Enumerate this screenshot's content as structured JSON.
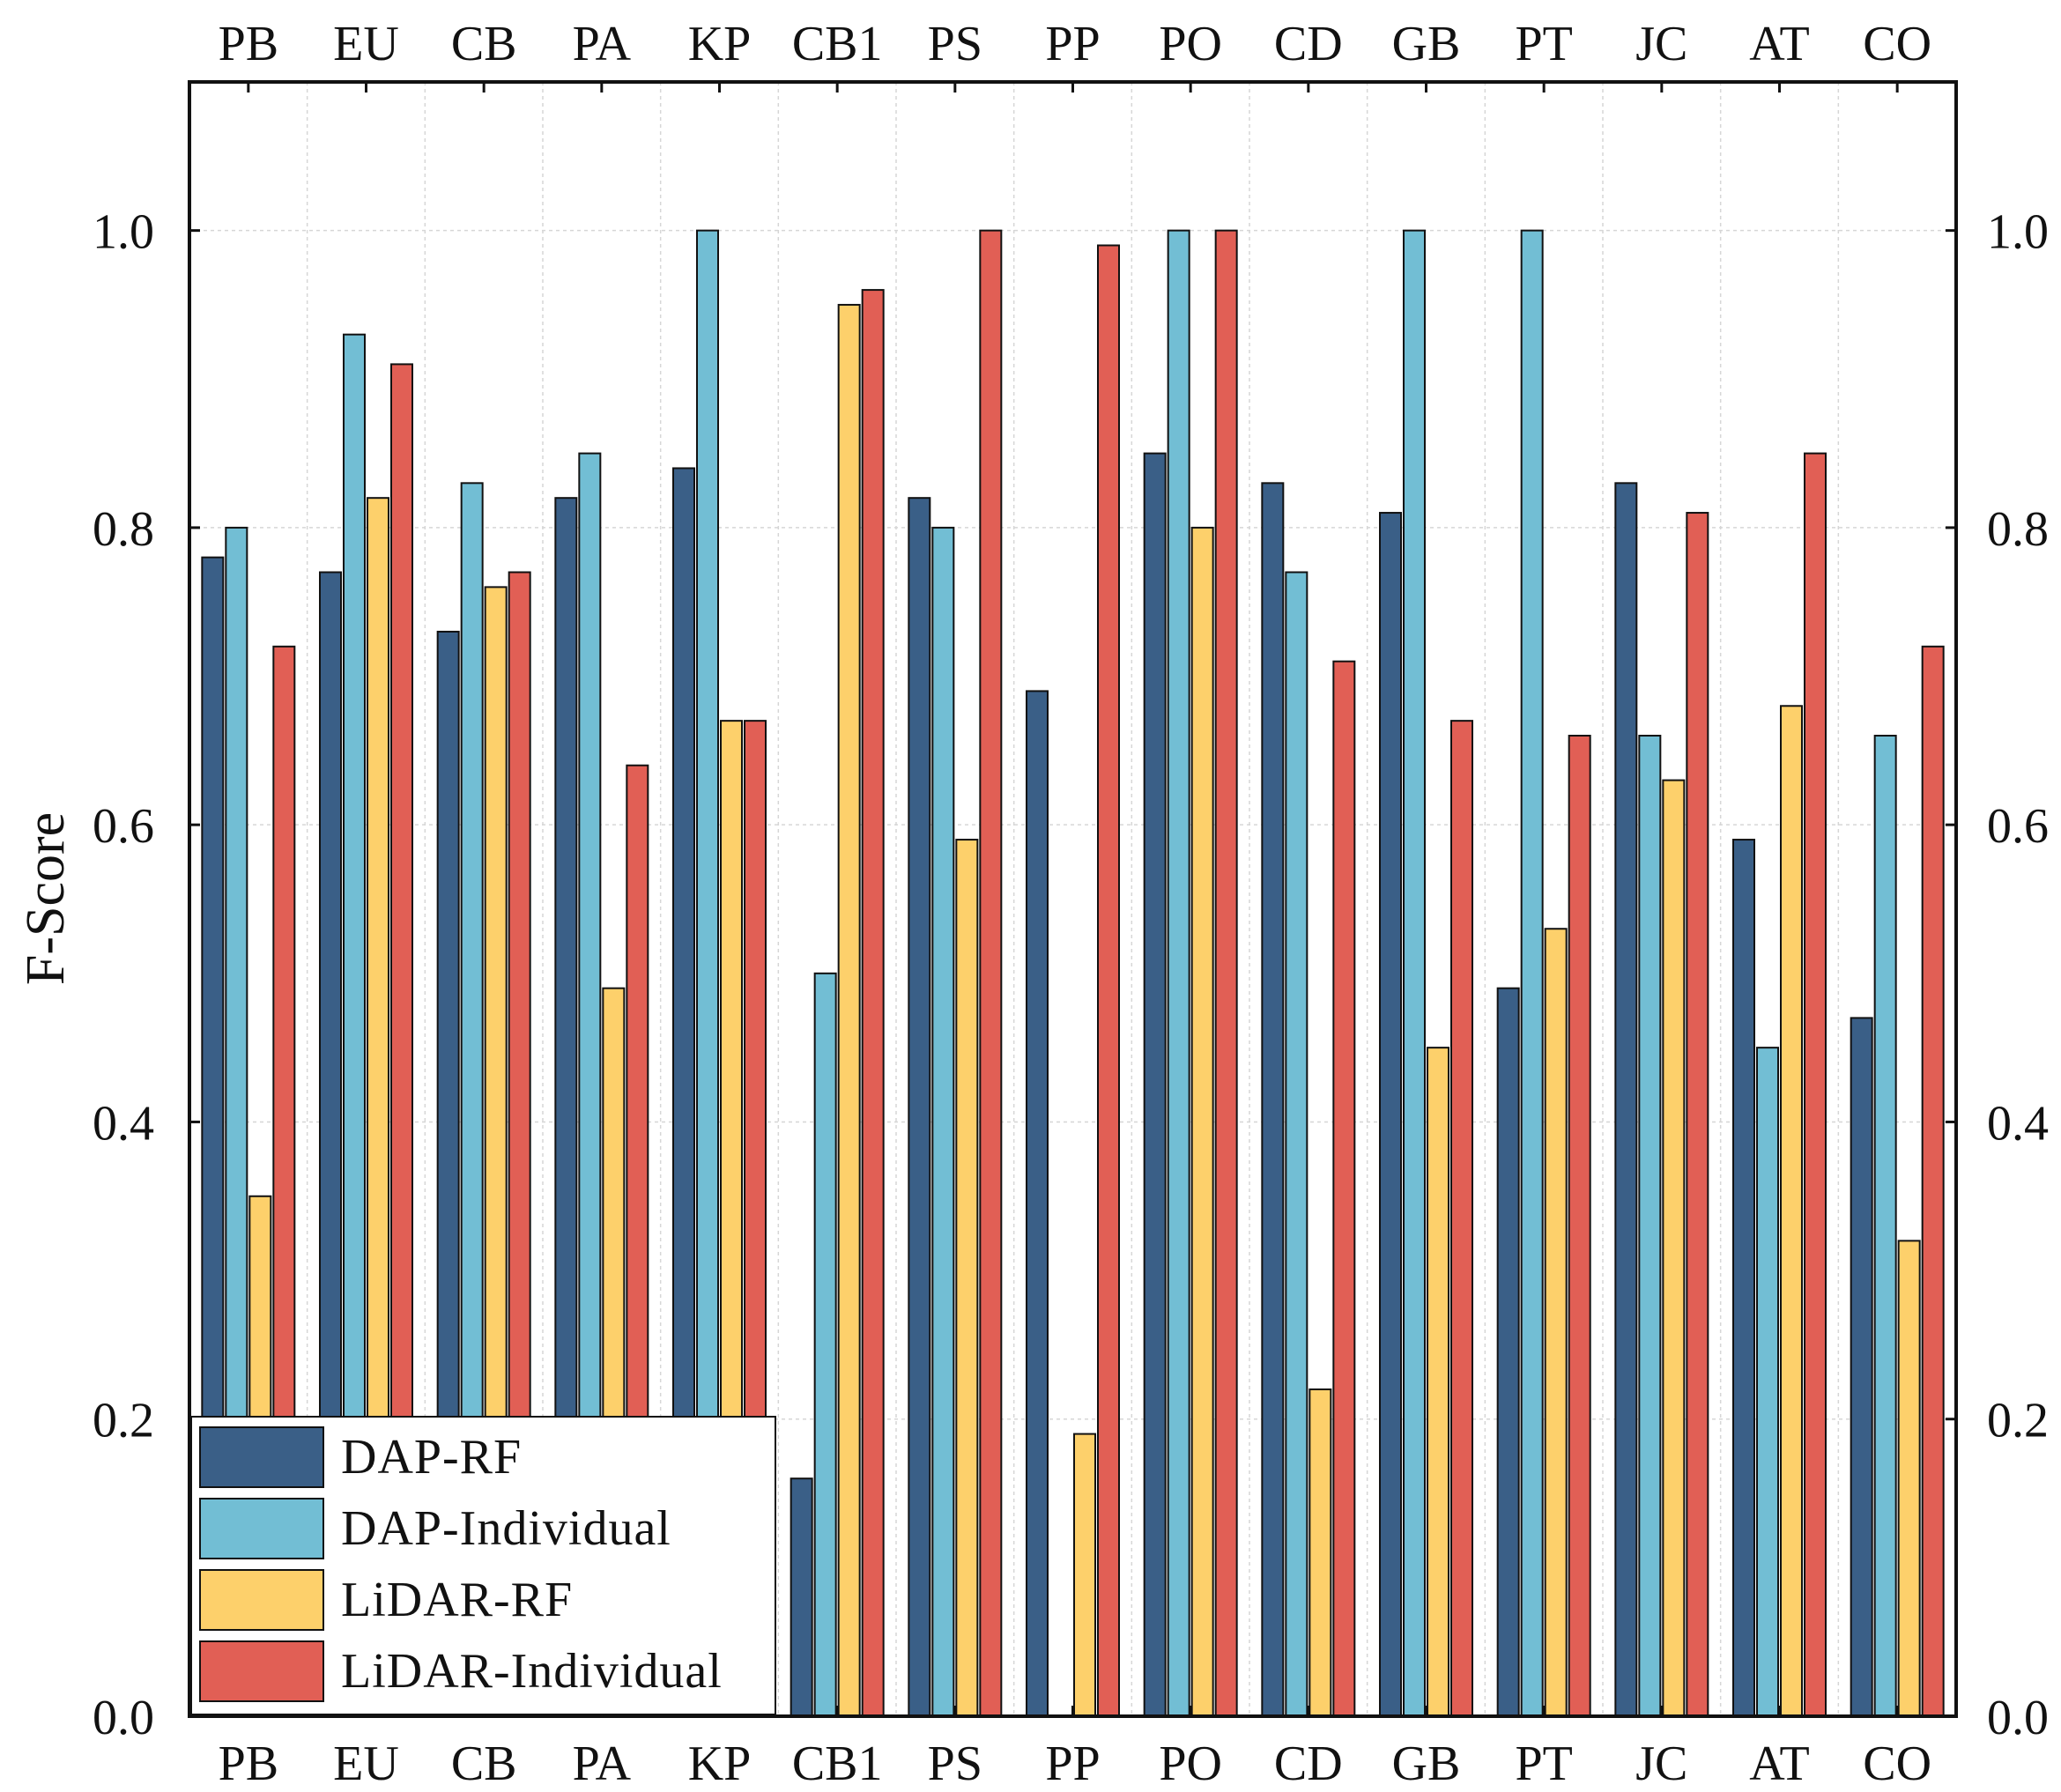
{
  "chart_data": {
    "type": "bar",
    "ylabel": "F-Score",
    "ylim": [
      0,
      1.1
    ],
    "yticks": [
      "0.0",
      "0.2",
      "0.4",
      "0.6",
      "0.8",
      "1.0"
    ],
    "categories": [
      "PB",
      "EU",
      "CB",
      "PA",
      "KP",
      "CB1",
      "PS",
      "PP",
      "PO",
      "CD",
      "GB",
      "PT",
      "JC",
      "AT",
      "CO"
    ],
    "series": [
      {
        "name": "DAP-RF",
        "color": "#3a5f87",
        "values": [
          0.78,
          0.77,
          0.73,
          0.82,
          0.84,
          0.16,
          0.82,
          0.69,
          0.85,
          0.83,
          0.81,
          0.49,
          0.83,
          0.59,
          0.47
        ]
      },
      {
        "name": "DAP-Individual",
        "color": "#72bed4",
        "values": [
          0.8,
          0.93,
          0.83,
          0.85,
          1.0,
          0.5,
          0.8,
          0.0,
          1.0,
          0.77,
          1.0,
          1.0,
          0.66,
          0.45,
          0.66
        ]
      },
      {
        "name": "LiDAR-RF",
        "color": "#fdd06b",
        "values": [
          0.35,
          0.82,
          0.76,
          0.49,
          0.67,
          0.95,
          0.59,
          0.19,
          0.8,
          0.22,
          0.45,
          0.53,
          0.63,
          0.68,
          0.32
        ]
      },
      {
        "name": "LiDAR-Individual",
        "color": "#e15f55",
        "values": [
          0.72,
          0.91,
          0.77,
          0.64,
          0.67,
          0.96,
          1.0,
          0.99,
          1.0,
          0.71,
          0.67,
          0.66,
          0.81,
          0.85,
          0.72
        ]
      }
    ],
    "legend": {
      "position": "bottom-left"
    }
  }
}
